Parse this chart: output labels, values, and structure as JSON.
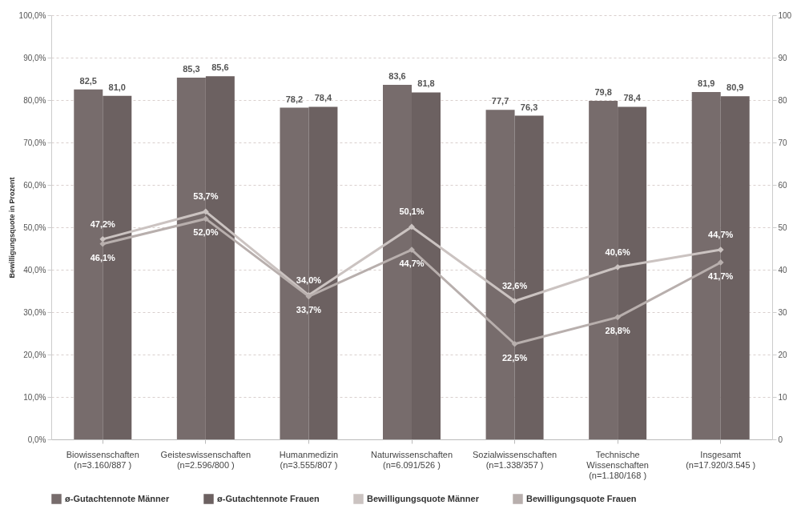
{
  "chart_data": {
    "type": "bar",
    "ylabel": "Bewilligungsquote in Prozent",
    "categories": [
      "Biowissenschaften\n(n=3.160/887 )",
      "Geisteswissenschaften\n(n=2.596/800 )",
      "Humanmedizin\n(n=3.555/807 )",
      "Naturwissenschaften\n(n=6.091/526 )",
      "Sozialwissenschaften\n(n=1.338/357 )",
      "Technische\nWissenschaften\n(n=1.180/168 )",
      "Insgesamt\n(n=17.920/3.545 )"
    ],
    "series": [
      {
        "name": "ø-Gutachtennote Männer",
        "axis": "y2",
        "color": "#776c6c",
        "values": [
          82.5,
          85.3,
          78.2,
          83.6,
          77.7,
          79.8,
          81.9
        ],
        "value_labels": [
          "82,5",
          "85,3",
          "78,2",
          "83,6",
          "77,7",
          "79,8",
          "81,9"
        ]
      },
      {
        "name": "ø-Gutachtennote Frauen",
        "axis": "y2",
        "color": "#6c6161",
        "values": [
          81.0,
          85.6,
          78.4,
          81.8,
          76.3,
          78.4,
          80.9
        ],
        "value_labels": [
          "81,0",
          "85,6",
          "78,4",
          "81,8",
          "76,3",
          "78,4",
          "80,9"
        ]
      },
      {
        "name": "Bewilligungsquote Männer",
        "type": "line",
        "color": "#cbc3c1",
        "values": [
          47.2,
          53.7,
          34.0,
          50.1,
          32.6,
          40.6,
          44.7
        ],
        "value_labels": [
          "47,2%",
          "53,7%",
          "34,0%",
          "50,1%",
          "32,6%",
          "40,6%",
          "44,7%"
        ]
      },
      {
        "name": "Bewilligungsquote Frauen",
        "type": "line",
        "color": "#b8afad",
        "values": [
          46.1,
          52.0,
          33.7,
          44.7,
          22.5,
          28.8,
          41.7
        ],
        "value_labels": [
          "46,1%",
          "52,0%",
          "33,7%",
          "44,7%",
          "22,5%",
          "28,8%",
          "41,7%"
        ]
      }
    ],
    "ylim": [
      0,
      100
    ],
    "yticks": [
      {
        "value": 0,
        "label": "0,0%"
      },
      {
        "value": 10,
        "label": "10,0%"
      },
      {
        "value": 20,
        "label": "20,0%"
      },
      {
        "value": 30,
        "label": "30,0%"
      },
      {
        "value": 40,
        "label": "40,0%"
      },
      {
        "value": 50,
        "label": "50,0%"
      },
      {
        "value": 60,
        "label": "60,0%"
      },
      {
        "value": 70,
        "label": "70,0%"
      },
      {
        "value": 80,
        "label": "80,0%"
      },
      {
        "value": 90,
        "label": "90,0%"
      },
      {
        "value": 100,
        "label": "100,0%"
      }
    ],
    "y2lim": [
      0,
      100
    ],
    "y2ticks": [
      0,
      10,
      20,
      30,
      40,
      50,
      60,
      70,
      80,
      90,
      100
    ],
    "grid": "y",
    "legend": "bottom",
    "marker": "diamond",
    "line_style": "solid"
  }
}
